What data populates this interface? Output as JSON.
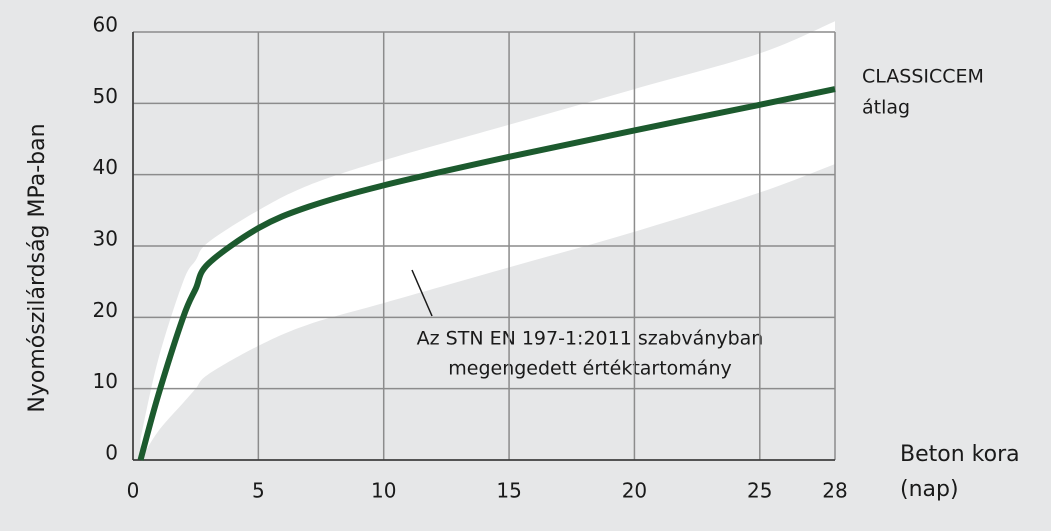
{
  "chart_data": {
    "type": "line",
    "x": [
      0.3,
      1,
      2,
      2.5,
      3,
      5,
      7,
      10,
      15,
      20,
      25,
      28
    ],
    "series": [
      {
        "label": [
          "CLASSICCEM",
          "átlag"
        ],
        "color": "#1c5a2e",
        "values": [
          0,
          9,
          20,
          24,
          27.5,
          32.5,
          35.5,
          38.5,
          42.5,
          46.2,
          49.8,
          52
        ]
      }
    ],
    "band": {
      "label": [
        "Az STN EN 197-1:2011 szabványban",
        "megengedett értéktartomány"
      ],
      "color": "#ffffff",
      "lower": [
        0,
        4,
        8,
        10,
        12,
        16,
        19,
        22,
        27,
        32,
        37.5,
        41.5
      ],
      "upper": [
        3,
        14,
        25,
        28,
        30.5,
        35,
        38.5,
        42,
        47,
        52,
        57,
        61.5
      ]
    },
    "xlim": [
      0,
      28
    ],
    "ylim": [
      0,
      60
    ],
    "xticks": [
      0,
      5,
      10,
      15,
      20,
      25,
      28
    ],
    "yticks": [
      0,
      10,
      20,
      30,
      40,
      50,
      60
    ],
    "grid": true,
    "grid_color": "#8c8c8c",
    "y_label": "Nyomószilárdság MPa-ban",
    "x_label": [
      "Beton kora",
      "(nap)"
    ]
  }
}
